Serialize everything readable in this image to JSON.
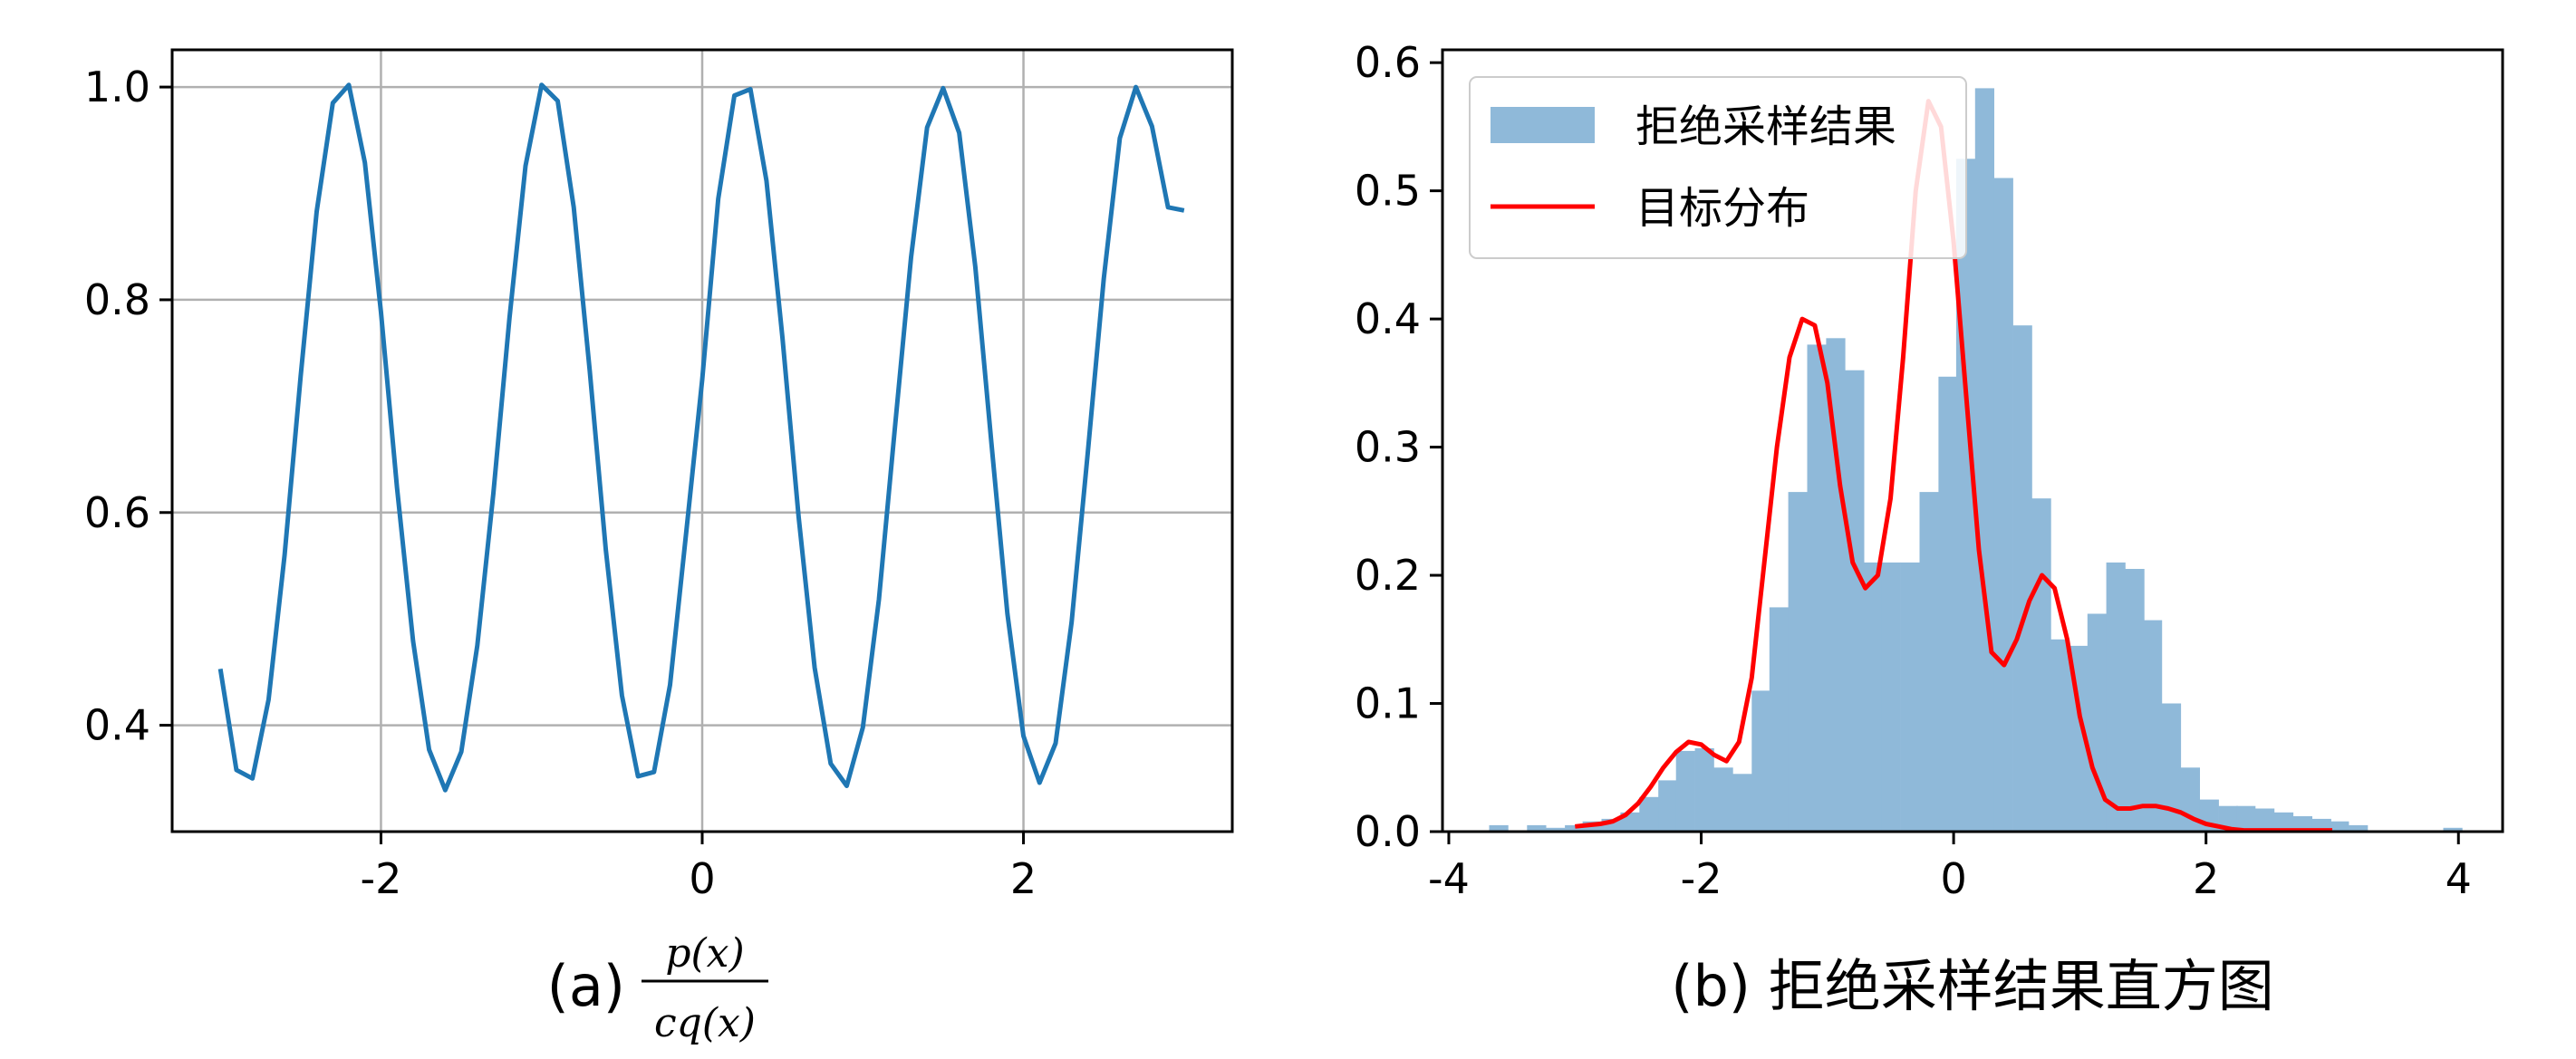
{
  "colors": {
    "curve": "#1f77b4",
    "hist": "#8fb9d9",
    "target": "#ff0000",
    "grid": "#b0b0b0",
    "axis": "#000000"
  },
  "chart_data": [
    {
      "type": "line",
      "title": "",
      "xlabel": "",
      "ylabel": "",
      "caption_prefix": "(a)",
      "caption_numerator": "p(x)",
      "caption_denominator": "cq(x)",
      "grid": true,
      "xlim": [
        -3.3,
        3.3
      ],
      "ylim": [
        0.3,
        1.035
      ],
      "xticks": [
        -2,
        0,
        2
      ],
      "xtick_labels": [
        "-2",
        "0",
        "2"
      ],
      "yticks": [
        0.4,
        0.6,
        0.8,
        1.0
      ],
      "ytick_labels": [
        "0.4",
        "0.6",
        "0.8",
        "1.0"
      ],
      "series": [
        {
          "x": [
            -3.0,
            -2.9,
            -2.8,
            -2.7,
            -2.6,
            -2.5,
            -2.4,
            -2.3,
            -2.2,
            -2.1,
            -2.0,
            -1.9,
            -1.8,
            -1.7,
            -1.6,
            -1.5,
            -1.4,
            -1.3,
            -1.2,
            -1.1,
            -1.0,
            -0.9,
            -0.8,
            -0.7,
            -0.6,
            -0.5,
            -0.4,
            -0.3,
            -0.2,
            -0.1,
            0.0,
            0.1,
            0.2,
            0.3,
            0.4,
            0.5,
            0.6,
            0.7,
            0.8,
            0.9,
            1.0,
            1.1,
            1.2,
            1.3,
            1.4,
            1.5,
            1.6,
            1.7,
            1.8,
            1.9,
            2.0,
            2.1,
            2.2,
            2.3,
            2.4,
            2.5,
            2.6,
            2.7,
            2.8,
            2.9,
            3.0
          ],
          "y": [
            0.453,
            0.358,
            0.35,
            0.424,
            0.56,
            0.728,
            0.883,
            0.985,
            1.002,
            0.929,
            0.788,
            0.623,
            0.479,
            0.377,
            0.339,
            0.375,
            0.475,
            0.618,
            0.783,
            0.926,
            1.002,
            0.987,
            0.887,
            0.733,
            0.565,
            0.428,
            0.352,
            0.356,
            0.438,
            0.581,
            0.725,
            0.895,
            0.992,
            0.998,
            0.912,
            0.764,
            0.596,
            0.454,
            0.364,
            0.343,
            0.398,
            0.518,
            0.68,
            0.84,
            0.962,
            0.999,
            0.957,
            0.831,
            0.666,
            0.505,
            0.39,
            0.346,
            0.383,
            0.497,
            0.656,
            0.82,
            0.952,
            1.0,
            0.963,
            0.887,
            0.884
          ]
        }
      ]
    },
    {
      "type": "bar",
      "title": "",
      "xlabel": "",
      "ylabel": "",
      "caption": "(b) 拒绝采样结果直方图",
      "grid": false,
      "legend_position": "top-left",
      "xlim": [
        -4.05,
        4.35
      ],
      "ylim": [
        0.0,
        0.61
      ],
      "xticks": [
        -4,
        -2,
        0,
        2,
        4
      ],
      "xtick_labels": [
        "-4",
        "-2",
        "0",
        "2",
        "4"
      ],
      "yticks": [
        0.0,
        0.1,
        0.2,
        0.3,
        0.4,
        0.5,
        0.6
      ],
      "ytick_labels": [
        "0.0",
        "0.1",
        "0.2",
        "0.3",
        "0.4",
        "0.5",
        "0.6"
      ],
      "bin_width": 0.148,
      "bins_start": [
        -3.68,
        -3.38,
        -3.23,
        -3.08,
        -2.94,
        -2.79,
        -2.64,
        -2.49,
        -2.34,
        -2.2,
        -2.05,
        -1.9,
        -1.75,
        -1.6,
        -1.46,
        -1.31,
        -1.16,
        -1.01,
        -0.86,
        -0.72,
        -0.57,
        -0.42,
        -0.27,
        -0.12,
        0.02,
        0.17,
        0.32,
        0.47,
        0.62,
        0.76,
        0.91,
        1.06,
        1.21,
        1.36,
        1.5,
        1.65,
        1.8,
        1.95,
        2.1,
        2.24,
        2.39,
        2.54,
        2.69,
        2.84,
        2.98,
        3.13,
        3.88
      ],
      "bins_height": [
        0.005,
        0.005,
        0.003,
        0.005,
        0.008,
        0.01,
        0.015,
        0.027,
        0.04,
        0.063,
        0.065,
        0.05,
        0.045,
        0.11,
        0.175,
        0.265,
        0.38,
        0.385,
        0.36,
        0.21,
        0.21,
        0.21,
        0.265,
        0.355,
        0.525,
        0.58,
        0.51,
        0.395,
        0.26,
        0.15,
        0.145,
        0.17,
        0.21,
        0.205,
        0.165,
        0.1,
        0.05,
        0.025,
        0.02,
        0.02,
        0.018,
        0.015,
        0.012,
        0.01,
        0.008,
        0.005,
        0.003
      ],
      "series": [
        {
          "name": "拒绝采样结果",
          "kind": "histogram"
        },
        {
          "name": "目标分布",
          "kind": "line",
          "x": [
            -3.0,
            -2.9,
            -2.8,
            -2.7,
            -2.6,
            -2.5,
            -2.4,
            -2.3,
            -2.2,
            -2.1,
            -2.0,
            -1.9,
            -1.8,
            -1.7,
            -1.6,
            -1.5,
            -1.4,
            -1.3,
            -1.2,
            -1.1,
            -1.0,
            -0.9,
            -0.8,
            -0.7,
            -0.6,
            -0.5,
            -0.4,
            -0.3,
            -0.2,
            -0.1,
            0.0,
            0.1,
            0.2,
            0.3,
            0.4,
            0.5,
            0.6,
            0.7,
            0.8,
            0.9,
            1.0,
            1.1,
            1.2,
            1.3,
            1.4,
            1.5,
            1.6,
            1.7,
            1.8,
            1.9,
            2.0,
            2.1,
            2.2,
            2.3,
            2.4,
            2.5,
            2.6,
            2.7,
            2.8,
            2.9,
            3.0
          ],
          "y": [
            0.004,
            0.005,
            0.006,
            0.008,
            0.013,
            0.022,
            0.035,
            0.05,
            0.062,
            0.07,
            0.068,
            0.06,
            0.055,
            0.07,
            0.12,
            0.21,
            0.3,
            0.37,
            0.4,
            0.395,
            0.35,
            0.27,
            0.21,
            0.19,
            0.2,
            0.26,
            0.37,
            0.5,
            0.57,
            0.55,
            0.46,
            0.34,
            0.22,
            0.14,
            0.13,
            0.15,
            0.18,
            0.2,
            0.19,
            0.15,
            0.09,
            0.05,
            0.025,
            0.018,
            0.018,
            0.02,
            0.02,
            0.018,
            0.015,
            0.01,
            0.006,
            0.004,
            0.002,
            0.001,
            0.001,
            0.001,
            0.001,
            0.001,
            0.001,
            0.001,
            0.001
          ]
        }
      ]
    }
  ]
}
